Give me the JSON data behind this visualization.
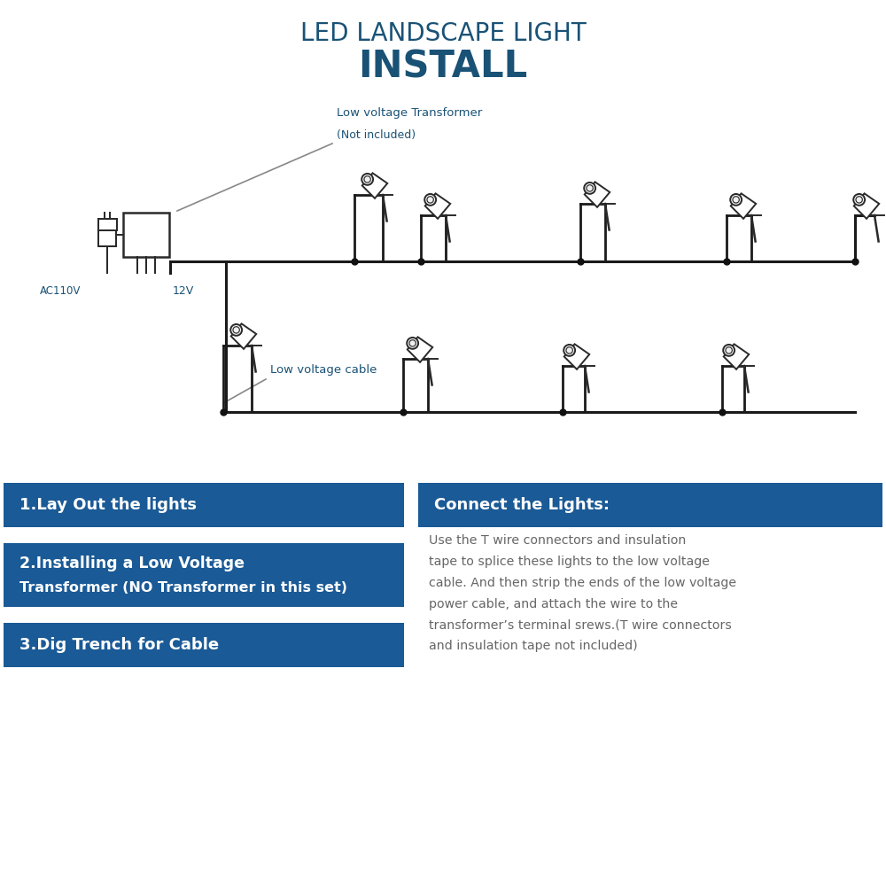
{
  "title_line1": "LED LANDSCAPE LIGHT",
  "title_line2": "INSTALL",
  "title_color": "#1a5276",
  "title_line1_size": 20,
  "title_line2_size": 30,
  "label_transformer": "Low voltage Transformer",
  "label_transformer2": "(Not included)",
  "label_cable": "Low voltage cable",
  "label_ac": "AC110V",
  "label_12v": "12V",
  "label_color": "#1a5276",
  "wire_color": "#1a1a1a",
  "bg_color": "#ffffff",
  "box1_text": "1.Lay Out the lights",
  "box2_line1": "2.Installing a Low Voltage",
  "box2_line2": "Transformer (NO Transformer in this set)",
  "box3_text": "3.Dig Trench for Cable",
  "box_right_title": "Connect the Lights:",
  "box_right_text": "Use the T wire connectors and insulation\ntape to splice these lights to the low voltage\ncable. And then strip the ends of the low voltage\npower cable, and attach the wire to the\ntransformer’s terminal srews.(T wire connectors\nand insulation tape not included)",
  "box_bg_color": "#1a5a96",
  "box_text_color": "#ffffff",
  "right_text_color": "#666666"
}
